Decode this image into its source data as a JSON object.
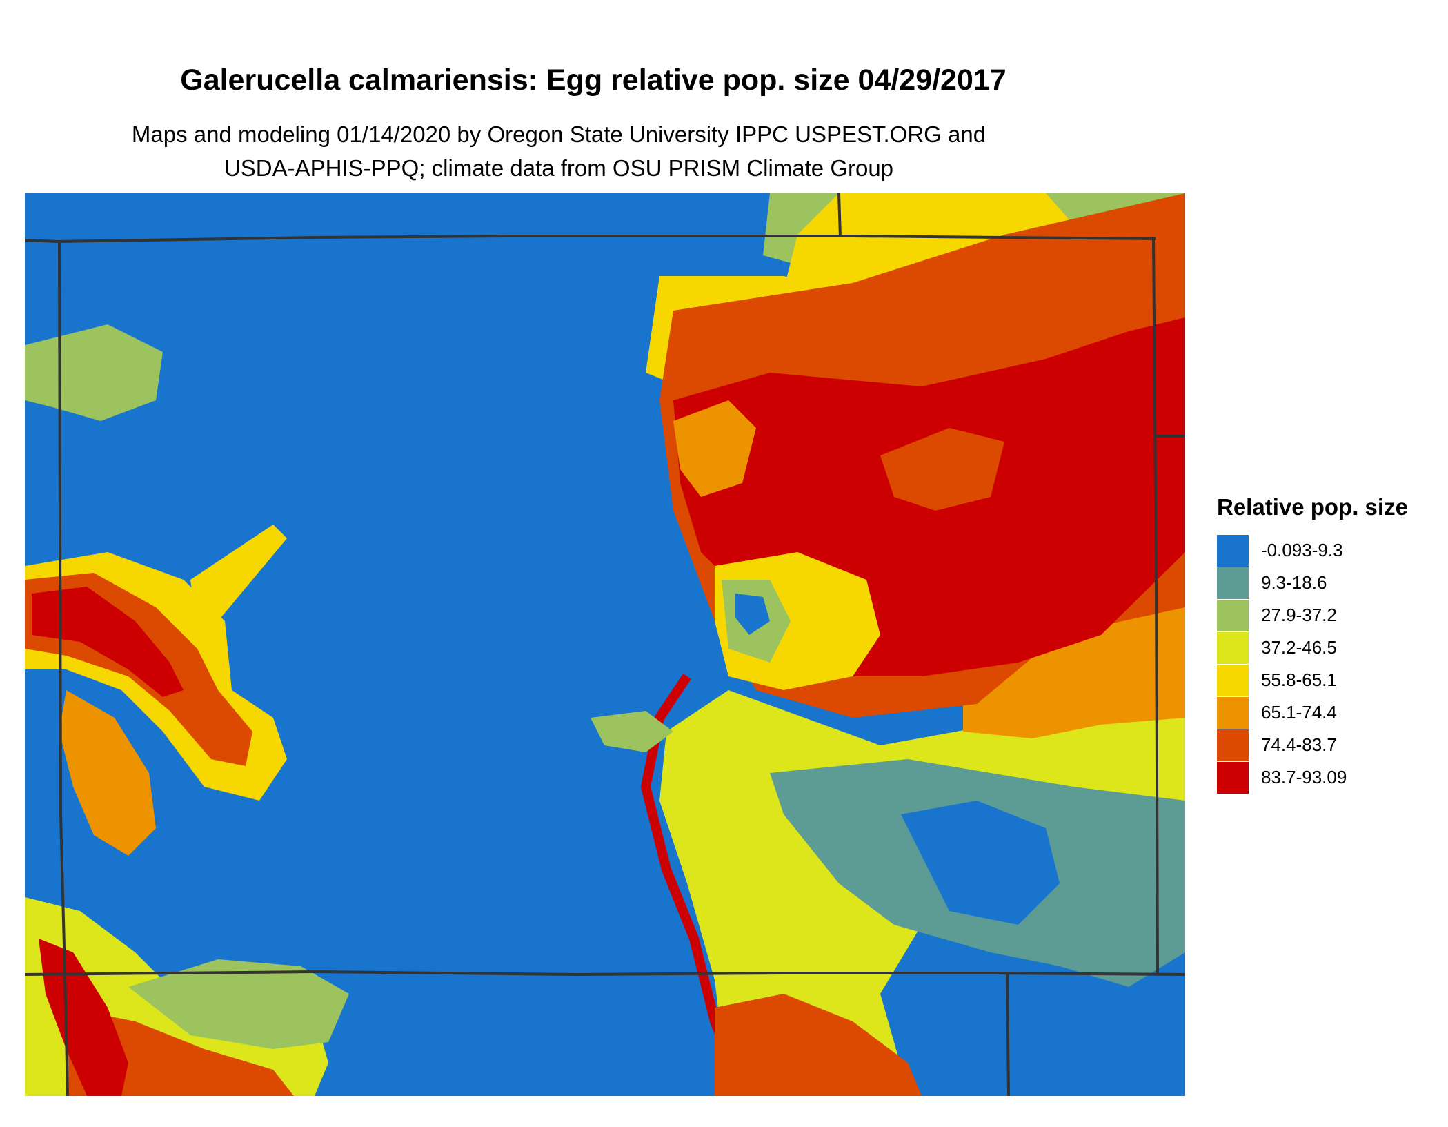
{
  "title": "Galerucella calmariensis: Egg relative pop. size 04/29/2017",
  "subtitle_line1": "Maps and modeling 01/14/2020 by Oregon State University IPPC USPEST.ORG and",
  "subtitle_line2": "USDA-APHIS-PPQ; climate data from OSU PRISM Climate Group",
  "legend": {
    "title": "Relative pop. size",
    "items": [
      {
        "label": "-0.093-9.3",
        "color": "#1874CD"
      },
      {
        "label": "9.3-18.6",
        "color": "#5C9C94"
      },
      {
        "label": "27.9-37.2",
        "color": "#9DC35F"
      },
      {
        "label": "37.2-46.5",
        "color": "#DDE61B"
      },
      {
        "label": "55.8-65.1",
        "color": "#F6D800"
      },
      {
        "label": "65.1-74.4",
        "color": "#EE9300"
      },
      {
        "label": "74.4-83.7",
        "color": "#DB4A00"
      },
      {
        "label": "83.7-93.09",
        "color": "#CC0000"
      }
    ]
  },
  "colors": {
    "background": "#1874CD",
    "boundary": "#333333"
  }
}
